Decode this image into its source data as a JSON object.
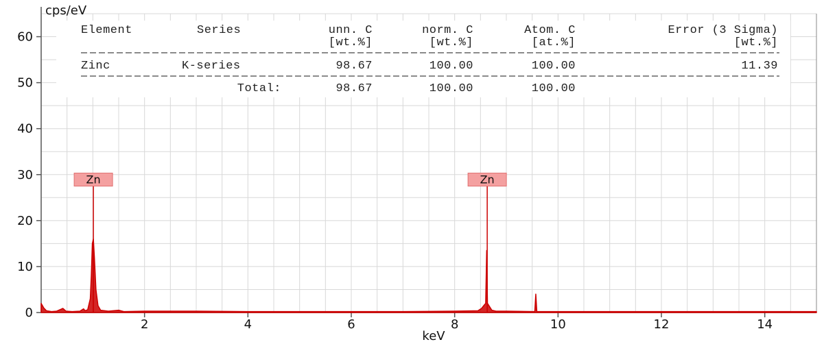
{
  "chart_data": {
    "type": "line",
    "ylabel": "cps/eV",
    "xlabel": "keV",
    "xlim": [
      0,
      15
    ],
    "ylim": [
      0,
      65
    ],
    "x_ticks": [
      2,
      4,
      6,
      8,
      10,
      12,
      14
    ],
    "y_ticks": [
      0,
      10,
      20,
      30,
      40,
      50,
      60
    ],
    "grid": true,
    "series": [
      {
        "color": "#cc0000",
        "points": [
          [
            0.0,
            2.0
          ],
          [
            0.05,
            1.0
          ],
          [
            0.1,
            0.4
          ],
          [
            0.2,
            0.2
          ],
          [
            0.3,
            0.3
          ],
          [
            0.38,
            0.7
          ],
          [
            0.42,
            0.9
          ],
          [
            0.48,
            0.3
          ],
          [
            0.6,
            0.2
          ],
          [
            0.75,
            0.3
          ],
          [
            0.82,
            0.8
          ],
          [
            0.85,
            0.4
          ],
          [
            0.9,
            0.6
          ],
          [
            0.95,
            3.0
          ],
          [
            0.97,
            8.0
          ],
          [
            0.99,
            15.0
          ],
          [
            1.01,
            16.0
          ],
          [
            1.03,
            12.0
          ],
          [
            1.06,
            5.0
          ],
          [
            1.1,
            1.5
          ],
          [
            1.15,
            0.5
          ],
          [
            1.3,
            0.3
          ],
          [
            1.5,
            0.5
          ],
          [
            1.6,
            0.2
          ],
          [
            2.0,
            0.3
          ],
          [
            3.0,
            0.3
          ],
          [
            4.0,
            0.2
          ],
          [
            5.0,
            0.2
          ],
          [
            6.0,
            0.2
          ],
          [
            7.0,
            0.2
          ],
          [
            8.0,
            0.3
          ],
          [
            8.45,
            0.4
          ],
          [
            8.52,
            0.9
          ],
          [
            8.57,
            1.6
          ],
          [
            8.6,
            2.0
          ],
          [
            8.62,
            13.5
          ],
          [
            8.635,
            2.0
          ],
          [
            8.68,
            1.2
          ],
          [
            8.72,
            0.5
          ],
          [
            8.8,
            0.3
          ],
          [
            9.0,
            0.3
          ],
          [
            9.55,
            0.2
          ],
          [
            9.57,
            4.0
          ],
          [
            9.59,
            0.2
          ],
          [
            10.0,
            0.2
          ],
          [
            12.0,
            0.2
          ],
          [
            14.0,
            0.2
          ],
          [
            15.0,
            0.2
          ]
        ]
      }
    ],
    "markers": [
      {
        "label": "Zn",
        "x": 1.01,
        "y_top": 27.5
      },
      {
        "label": "Zn",
        "x": 8.63,
        "y_top": 27.5
      }
    ],
    "table": {
      "header1": [
        "Element",
        "Series",
        "unn. C",
        "norm. C",
        "Atom. C",
        "Error (3 Sigma)"
      ],
      "header2": [
        "",
        "",
        "[wt.%]",
        "[wt.%]",
        "[at.%]",
        "[wt.%]"
      ],
      "row": [
        "Zinc",
        "K-series",
        "98.67",
        "100.00",
        "100.00",
        "11.39"
      ],
      "total": [
        "Total:",
        "98.67",
        "100.00",
        "100.00"
      ]
    },
    "colors": {
      "spectrum": "#cc0000",
      "marker_box": "#f4a0a0",
      "marker_border": "#e07070",
      "grid": "#d8d8d8",
      "axis": "#555555"
    }
  }
}
